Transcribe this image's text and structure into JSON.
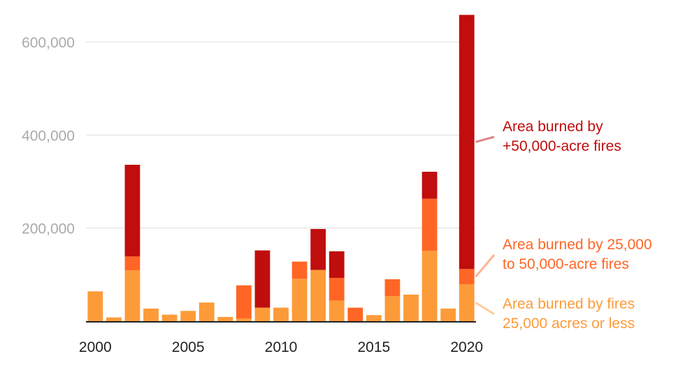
{
  "chart_data": {
    "type": "bar",
    "stacked": true,
    "x": [
      2000,
      2001,
      2002,
      2003,
      2004,
      2005,
      2006,
      2007,
      2008,
      2009,
      2010,
      2011,
      2012,
      2013,
      2014,
      2015,
      2016,
      2017,
      2018,
      2019,
      2020
    ],
    "series": [
      {
        "name": "Area burned by fires 25,000 acres or less",
        "color": "#fd9b39",
        "values": [
          64000,
          8000,
          109000,
          27000,
          14000,
          22000,
          40000,
          9000,
          6000,
          29000,
          29000,
          91000,
          110000,
          44000,
          0,
          13000,
          54000,
          57000,
          151000,
          27000,
          79000
        ]
      },
      {
        "name": "Area burned by 25,000 to 50,000-acre fires",
        "color": "#ff6625",
        "values": [
          0,
          0,
          30000,
          0,
          0,
          0,
          0,
          0,
          71000,
          0,
          0,
          37000,
          0,
          49000,
          29000,
          0,
          36000,
          0,
          112000,
          0,
          33000
        ]
      },
      {
        "name": "Area burned by +50,000-acre fires",
        "color": "#c00d0d",
        "values": [
          0,
          0,
          197000,
          0,
          0,
          0,
          0,
          0,
          0,
          123000,
          0,
          0,
          88000,
          57000,
          0,
          0,
          0,
          0,
          58000,
          0,
          546000
        ]
      }
    ],
    "y_ticks": [
      "200,000",
      "400,000",
      "600,000"
    ],
    "y_tick_values": [
      200000,
      400000,
      600000
    ],
    "x_ticks": [
      "2000",
      "2005",
      "2010",
      "2015",
      "2020"
    ],
    "x_tick_values": [
      2000,
      2005,
      2010,
      2015,
      2020
    ],
    "ylim": [
      0,
      660000
    ],
    "grid": true,
    "legend": [
      {
        "lines": [
          "Area burned by",
          "+50,000-acre fires"
        ],
        "color": "#c00d0d",
        "series_index": 2
      },
      {
        "lines": [
          "Area burned by 25,000",
          "to 50,000-acre fires"
        ],
        "color": "#ff6625",
        "series_index": 1
      },
      {
        "lines": [
          "Area burned by fires",
          "25,000 acres or less"
        ],
        "color": "#fd9b39",
        "series_index": 0
      }
    ]
  }
}
